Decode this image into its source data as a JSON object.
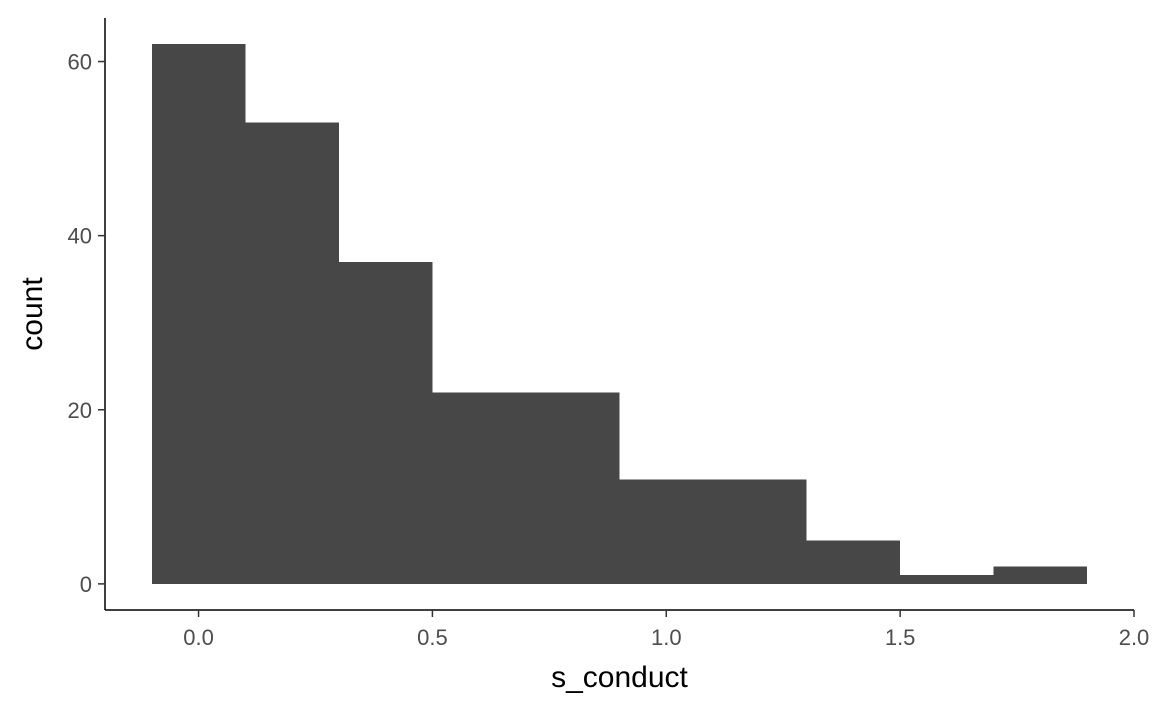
{
  "chart_data": {
    "type": "bar",
    "subtype": "histogram",
    "xlabel": "s_conduct",
    "ylabel": "count",
    "xlim": [
      -0.2,
      2.0
    ],
    "ylim": [
      -3,
      65
    ],
    "bar_color": "#474747",
    "grid": false,
    "legend": "none",
    "bins": [
      {
        "x0": -0.1,
        "x1": 0.1,
        "count": 62
      },
      {
        "x0": 0.1,
        "x1": 0.3,
        "count": 53
      },
      {
        "x0": 0.3,
        "x1": 0.5,
        "count": 37
      },
      {
        "x0": 0.5,
        "x1": 0.7,
        "count": 22
      },
      {
        "x0": 0.7,
        "x1": 0.9,
        "count": 22
      },
      {
        "x0": 0.9,
        "x1": 1.1,
        "count": 12
      },
      {
        "x0": 1.1,
        "x1": 1.3,
        "count": 12
      },
      {
        "x0": 1.3,
        "x1": 1.5,
        "count": 5
      },
      {
        "x0": 1.5,
        "x1": 1.7,
        "count": 1
      },
      {
        "x0": 1.7,
        "x1": 1.9,
        "count": 2
      }
    ],
    "x_ticks": [
      {
        "value": 0.0,
        "label": "0.0"
      },
      {
        "value": 0.5,
        "label": "0.5"
      },
      {
        "value": 1.0,
        "label": "1.0"
      },
      {
        "value": 1.5,
        "label": "1.5"
      },
      {
        "value": 2.0,
        "label": "2.0"
      }
    ],
    "y_ticks": [
      {
        "value": 0,
        "label": "0"
      },
      {
        "value": 20,
        "label": "20"
      },
      {
        "value": 40,
        "label": "40"
      },
      {
        "value": 60,
        "label": "60"
      }
    ]
  }
}
